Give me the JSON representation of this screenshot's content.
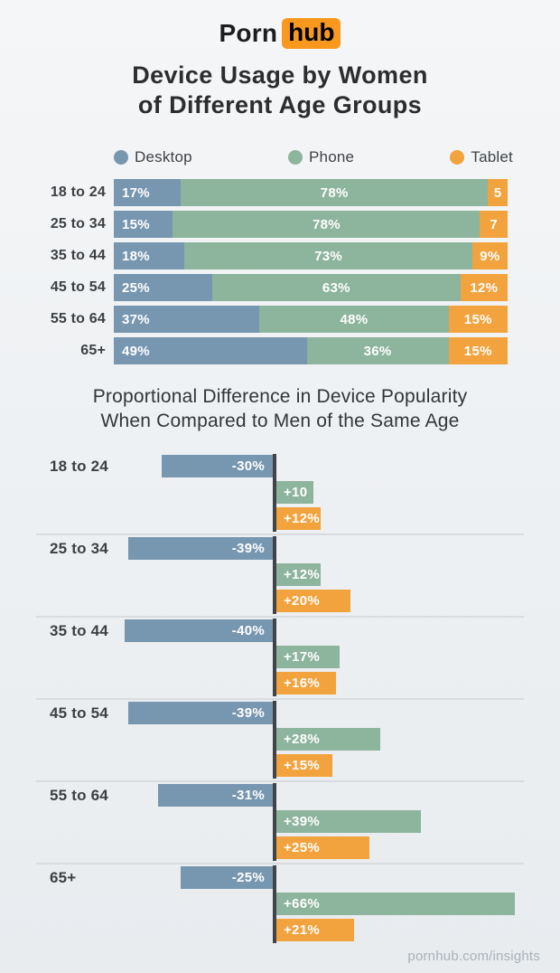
{
  "logo": {
    "word1": "Porn",
    "word2": "hub"
  },
  "title": {
    "line1": "Device Usage by Women",
    "line2": "of Different Age Groups"
  },
  "legend": [
    {
      "label": "Desktop",
      "color": "#7796b0"
    },
    {
      "label": "Phone",
      "color": "#8db49d"
    },
    {
      "label": "Tablet",
      "color": "#f3a33d"
    }
  ],
  "colors": {
    "desktop": "#7796b0",
    "phone": "#8db49d",
    "tablet": "#f3a33d",
    "zero_axis": "#404448",
    "divider": "#d9dcde",
    "logo_badge": "#f8981d"
  },
  "footer": {
    "link": "pornhub.com/insights"
  },
  "chart_data": [
    {
      "type": "bar",
      "subtype": "stacked-horizontal",
      "title": "Device Usage by Women of Different Age Groups",
      "categories": [
        "18 to 24",
        "25 to 34",
        "35 to 44",
        "45 to 54",
        "55 to 64",
        "65+"
      ],
      "unit": "percent",
      "xlim": [
        0,
        100
      ],
      "grid": false,
      "legend_position": "top",
      "series": [
        {
          "name": "Desktop",
          "color": "#7796b0",
          "values": [
            17,
            15,
            18,
            25,
            37,
            49
          ],
          "labels": [
            "17%",
            "15%",
            "18%",
            "25%",
            "37%",
            "49%"
          ]
        },
        {
          "name": "Phone",
          "color": "#8db49d",
          "values": [
            78,
            78,
            73,
            63,
            48,
            36
          ],
          "labels": [
            "78%",
            "78%",
            "73%",
            "63%",
            "48%",
            "36%"
          ]
        },
        {
          "name": "Tablet",
          "color": "#f3a33d",
          "values": [
            5,
            7,
            9,
            12,
            15,
            15
          ],
          "labels": [
            "5",
            "7",
            "9%",
            "12%",
            "15%",
            "15%"
          ]
        }
      ]
    },
    {
      "type": "bar",
      "subtype": "diverging-horizontal",
      "title": "Proportional Difference in Device Popularity When Compared to Men of the Same Age",
      "title_lines": [
        "Proportional Difference in Device Popularity",
        "When Compared to Men of the Same Age"
      ],
      "categories": [
        "18 to 24",
        "25 to 34",
        "35 to 44",
        "45 to 54",
        "55 to 64",
        "65+"
      ],
      "unit": "percent-difference",
      "grid": false,
      "series": [
        {
          "name": "Desktop",
          "color": "#7796b0",
          "values": [
            -30,
            -39,
            -40,
            -39,
            -31,
            -25
          ],
          "labels": [
            "-30%",
            "-39%",
            "-40%",
            "-39%",
            "-31%",
            "-25%"
          ]
        },
        {
          "name": "Phone",
          "color": "#8db49d",
          "values": [
            10,
            12,
            17,
            28,
            39,
            66
          ],
          "labels": [
            "+10",
            "+12%",
            "+17%",
            "+28%",
            "+39%",
            "+66%"
          ]
        },
        {
          "name": "Tablet",
          "color": "#f3a33d",
          "values": [
            12,
            20,
            16,
            15,
            25,
            21
          ],
          "labels": [
            "+12%",
            "+20%",
            "+16%",
            "+15%",
            "+25%",
            "+21%"
          ]
        }
      ]
    }
  ]
}
